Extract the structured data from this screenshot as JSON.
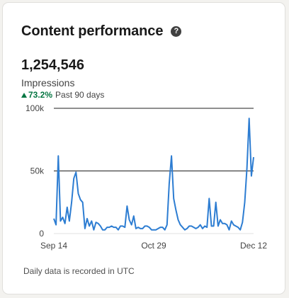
{
  "card": {
    "title": "Content performance",
    "help_icon": "question-circle-icon",
    "metric_value": "1,254,546",
    "metric_label": "Impressions",
    "change_icon": "triangle-up-icon",
    "change_value": "73.2%",
    "change_period": "Past 90 days",
    "footnote": "Daily data is recorded in UTC"
  },
  "colors": {
    "line": "#2d7dd2",
    "positive": "#057642",
    "gridline": "#1f1f1f"
  },
  "chart_data": {
    "type": "line",
    "title": "",
    "xlabel": "",
    "ylabel": "",
    "ylim": [
      0,
      100000
    ],
    "y_ticks": [
      "0",
      "50k",
      "100k"
    ],
    "x_ticks": [
      "Sep 14",
      "Oct 29",
      "Dec 12"
    ],
    "x_range": [
      "Sep 14",
      "Dec 12"
    ],
    "grid": "horizontal",
    "series": [
      {
        "name": "Impressions",
        "values": [
          12000,
          7000,
          62000,
          10000,
          13000,
          8000,
          21000,
          10000,
          25000,
          44000,
          49000,
          32000,
          27000,
          25000,
          4000,
          12000,
          6000,
          10000,
          3000,
          9000,
          8000,
          6000,
          3000,
          3000,
          5000,
          5000,
          6000,
          5000,
          5000,
          3000,
          6000,
          6000,
          5000,
          22000,
          11000,
          7000,
          14000,
          4000,
          5000,
          4000,
          4000,
          6000,
          6000,
          5000,
          3000,
          3000,
          3000,
          4000,
          5000,
          5000,
          3000,
          7000,
          40000,
          62000,
          28000,
          19000,
          11000,
          7000,
          5000,
          3000,
          4000,
          6000,
          6000,
          5000,
          4000,
          5000,
          7000,
          4000,
          6000,
          5000,
          28000,
          6000,
          6000,
          25000,
          6000,
          11000,
          8000,
          8000,
          7000,
          3000,
          10000,
          7000,
          6000,
          5000,
          3000,
          9000,
          25000,
          52000,
          92000,
          46000,
          61000
        ]
      }
    ]
  }
}
